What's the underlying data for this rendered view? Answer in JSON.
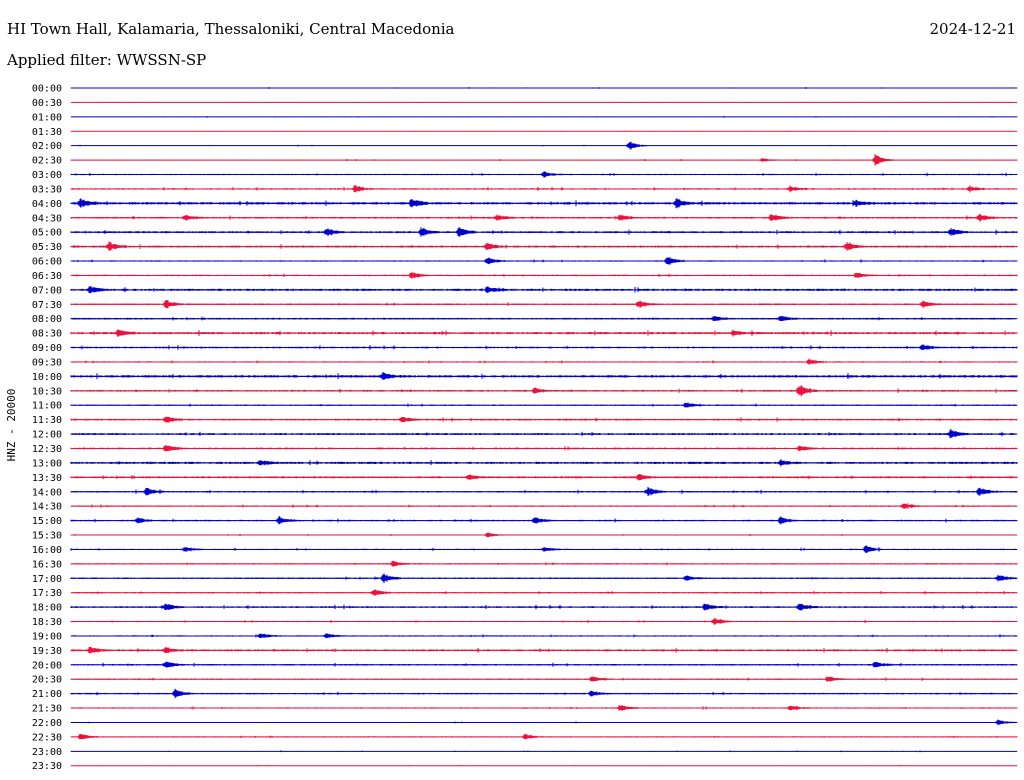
{
  "header": {
    "station": "HI Town Hall, Kalamaria, Thessaloniki, Central Macedonia",
    "date": "2024-12-21",
    "filter_text": "Applied filter: WWSSN-SP"
  },
  "colors": {
    "trace_a": "#0000cc",
    "trace_b": "#e8123c",
    "background": "#ffffff"
  },
  "chart_data": {
    "type": "line",
    "subtype": "helicorder",
    "title": "HI Town Hall, Kalamaria, Thessaloniki, Central Macedonia",
    "ylabel": "HNZ - 20000",
    "xlabel": "",
    "row_labels": [
      "00:00",
      "00:30",
      "01:00",
      "01:30",
      "02:00",
      "02:30",
      "03:00",
      "03:30",
      "04:00",
      "04:30",
      "05:00",
      "05:30",
      "06:00",
      "06:30",
      "07:00",
      "07:30",
      "08:00",
      "08:30",
      "09:00",
      "09:30",
      "10:00",
      "10:30",
      "11:00",
      "11:30",
      "12:00",
      "12:30",
      "13:00",
      "13:30",
      "14:00",
      "14:30",
      "15:00",
      "15:30",
      "16:00",
      "16:30",
      "17:00",
      "17:30",
      "18:00",
      "18:30",
      "19:00",
      "19:30",
      "20:00",
      "20:30",
      "21:00",
      "21:30",
      "22:00",
      "22:30",
      "23:00",
      "23:30"
    ],
    "row_interval_minutes": 30,
    "row_colors": "alternating blue/red",
    "noise_level": [
      0.3,
      0.2,
      0.3,
      0.2,
      0.3,
      0.4,
      0.6,
      0.7,
      1.1,
      0.8,
      0.9,
      0.9,
      0.6,
      0.7,
      1.0,
      0.7,
      0.8,
      1.0,
      0.8,
      0.6,
      1.1,
      0.8,
      0.6,
      0.8,
      0.9,
      0.8,
      1.0,
      0.9,
      0.7,
      0.6,
      0.7,
      0.4,
      0.6,
      0.6,
      0.7,
      0.6,
      0.8,
      0.6,
      0.6,
      0.9,
      0.7,
      0.6,
      0.7,
      0.6,
      0.4,
      0.5,
      0.3,
      0.2
    ],
    "events": [
      {
        "row": 4,
        "t": 0.59,
        "amp": 5
      },
      {
        "row": 5,
        "t": 0.85,
        "amp": 6
      },
      {
        "row": 5,
        "t": 0.73,
        "amp": 2
      },
      {
        "row": 6,
        "t": 0.5,
        "amp": 3
      },
      {
        "row": 7,
        "t": 0.3,
        "amp": 4
      },
      {
        "row": 7,
        "t": 0.76,
        "amp": 3
      },
      {
        "row": 7,
        "t": 0.95,
        "amp": 3
      },
      {
        "row": 8,
        "t": 0.01,
        "amp": 5
      },
      {
        "row": 8,
        "t": 0.36,
        "amp": 5
      },
      {
        "row": 8,
        "t": 0.64,
        "amp": 5
      },
      {
        "row": 8,
        "t": 0.83,
        "amp": 3
      },
      {
        "row": 9,
        "t": 0.12,
        "amp": 3
      },
      {
        "row": 9,
        "t": 0.45,
        "amp": 3
      },
      {
        "row": 9,
        "t": 0.58,
        "amp": 4
      },
      {
        "row": 9,
        "t": 0.74,
        "amp": 4
      },
      {
        "row": 9,
        "t": 0.96,
        "amp": 4
      },
      {
        "row": 10,
        "t": 0.27,
        "amp": 4
      },
      {
        "row": 10,
        "t": 0.37,
        "amp": 4
      },
      {
        "row": 10,
        "t": 0.41,
        "amp": 5
      },
      {
        "row": 10,
        "t": 0.93,
        "amp": 4
      },
      {
        "row": 11,
        "t": 0.04,
        "amp": 5
      },
      {
        "row": 11,
        "t": 0.44,
        "amp": 4
      },
      {
        "row": 11,
        "t": 0.82,
        "amp": 5
      },
      {
        "row": 12,
        "t": 0.44,
        "amp": 4
      },
      {
        "row": 12,
        "t": 0.63,
        "amp": 5
      },
      {
        "row": 13,
        "t": 0.36,
        "amp": 4
      },
      {
        "row": 13,
        "t": 0.83,
        "amp": 3
      },
      {
        "row": 14,
        "t": 0.02,
        "amp": 4
      },
      {
        "row": 14,
        "t": 0.44,
        "amp": 3
      },
      {
        "row": 15,
        "t": 0.1,
        "amp": 5
      },
      {
        "row": 15,
        "t": 0.6,
        "amp": 4
      },
      {
        "row": 15,
        "t": 0.9,
        "amp": 4
      },
      {
        "row": 16,
        "t": 0.68,
        "amp": 3
      },
      {
        "row": 16,
        "t": 0.75,
        "amp": 3
      },
      {
        "row": 17,
        "t": 0.05,
        "amp": 4
      },
      {
        "row": 17,
        "t": 0.7,
        "amp": 3
      },
      {
        "row": 18,
        "t": 0.9,
        "amp": 3
      },
      {
        "row": 19,
        "t": 0.78,
        "amp": 3
      },
      {
        "row": 20,
        "t": 0.33,
        "amp": 4
      },
      {
        "row": 21,
        "t": 0.49,
        "amp": 3
      },
      {
        "row": 21,
        "t": 0.77,
        "amp": 6
      },
      {
        "row": 22,
        "t": 0.65,
        "amp": 3
      },
      {
        "row": 23,
        "t": 0.1,
        "amp": 4
      },
      {
        "row": 23,
        "t": 0.35,
        "amp": 3
      },
      {
        "row": 24,
        "t": 0.93,
        "amp": 5
      },
      {
        "row": 25,
        "t": 0.1,
        "amp": 4
      },
      {
        "row": 25,
        "t": 0.77,
        "amp": 3
      },
      {
        "row": 26,
        "t": 0.2,
        "amp": 3
      },
      {
        "row": 26,
        "t": 0.75,
        "amp": 3
      },
      {
        "row": 27,
        "t": 0.42,
        "amp": 3
      },
      {
        "row": 27,
        "t": 0.6,
        "amp": 3
      },
      {
        "row": 28,
        "t": 0.08,
        "amp": 4
      },
      {
        "row": 28,
        "t": 0.61,
        "amp": 5
      },
      {
        "row": 28,
        "t": 0.96,
        "amp": 5
      },
      {
        "row": 29,
        "t": 0.88,
        "amp": 3
      },
      {
        "row": 30,
        "t": 0.07,
        "amp": 3
      },
      {
        "row": 30,
        "t": 0.22,
        "amp": 4
      },
      {
        "row": 30,
        "t": 0.49,
        "amp": 4
      },
      {
        "row": 30,
        "t": 0.75,
        "amp": 4
      },
      {
        "row": 31,
        "t": 0.44,
        "amp": 3
      },
      {
        "row": 32,
        "t": 0.12,
        "amp": 3
      },
      {
        "row": 32,
        "t": 0.5,
        "amp": 3
      },
      {
        "row": 32,
        "t": 0.84,
        "amp": 4
      },
      {
        "row": 33,
        "t": 0.34,
        "amp": 3
      },
      {
        "row": 34,
        "t": 0.33,
        "amp": 5
      },
      {
        "row": 34,
        "t": 0.65,
        "amp": 3
      },
      {
        "row": 34,
        "t": 0.98,
        "amp": 4
      },
      {
        "row": 35,
        "t": 0.32,
        "amp": 4
      },
      {
        "row": 36,
        "t": 0.1,
        "amp": 4
      },
      {
        "row": 36,
        "t": 0.67,
        "amp": 4
      },
      {
        "row": 36,
        "t": 0.77,
        "amp": 4
      },
      {
        "row": 37,
        "t": 0.68,
        "amp": 4
      },
      {
        "row": 38,
        "t": 0.2,
        "amp": 3
      },
      {
        "row": 38,
        "t": 0.27,
        "amp": 3
      },
      {
        "row": 39,
        "t": 0.02,
        "amp": 4
      },
      {
        "row": 39,
        "t": 0.1,
        "amp": 3
      },
      {
        "row": 40,
        "t": 0.1,
        "amp": 4
      },
      {
        "row": 40,
        "t": 0.85,
        "amp": 4
      },
      {
        "row": 41,
        "t": 0.55,
        "amp": 3
      },
      {
        "row": 41,
        "t": 0.8,
        "amp": 3
      },
      {
        "row": 42,
        "t": 0.11,
        "amp": 5
      },
      {
        "row": 42,
        "t": 0.55,
        "amp": 3
      },
      {
        "row": 43,
        "t": 0.58,
        "amp": 4
      },
      {
        "row": 43,
        "t": 0.76,
        "amp": 3
      },
      {
        "row": 44,
        "t": 0.98,
        "amp": 3
      },
      {
        "row": 45,
        "t": 0.01,
        "amp": 4
      },
      {
        "row": 45,
        "t": 0.48,
        "amp": 3
      }
    ]
  }
}
